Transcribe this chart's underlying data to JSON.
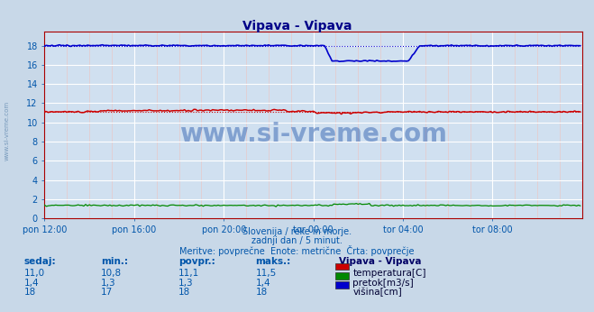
{
  "title": "Vipava - Vipava",
  "background_color": "#c8d8e8",
  "plot_bg_color": "#d0e0f0",
  "grid_white": "#ffffff",
  "grid_pink": "#e8c8c8",
  "title_color": "#000088",
  "subtitle_lines": [
    "Slovenija / reke in morje.",
    "zadnji dan / 5 minut.",
    "Meritve: povprečne  Enote: metrične  Črta: povprečje"
  ],
  "xtick_labels": [
    "pon 12:00",
    "pon 16:00",
    "pon 20:00",
    "tor 00:00",
    "tor 04:00",
    "tor 08:00"
  ],
  "xtick_pos": [
    0,
    48,
    96,
    144,
    192,
    240
  ],
  "yticks": [
    0,
    2,
    4,
    6,
    8,
    10,
    12,
    14,
    16,
    18
  ],
  "ylim": [
    0,
    19.5
  ],
  "xlim": [
    0,
    288
  ],
  "n_points": 288,
  "temp_color": "#cc0000",
  "flow_color": "#008800",
  "height_color": "#0000cc",
  "tick_color": "#0055aa",
  "axis_color": "#aa0000",
  "table_headers": [
    "sedaj:",
    "min.:",
    "povpr.:",
    "maks.:"
  ],
  "table_rows": [
    [
      "11,0",
      "10,8",
      "11,1",
      "11,5"
    ],
    [
      "1,4",
      "1,3",
      "1,3",
      "1,4"
    ],
    [
      "18",
      "17",
      "18",
      "18"
    ]
  ],
  "legend_labels": [
    "temperatura[C]",
    "pretok[m3/s]",
    "višina[cm]"
  ],
  "legend_colors": [
    "#cc0000",
    "#008800",
    "#0000cc"
  ],
  "station_label": "Vipava - Vipava",
  "watermark": "www.si-vreme.com",
  "watermark_color": "#2255aa",
  "left_label": "www.si-vreme.com"
}
